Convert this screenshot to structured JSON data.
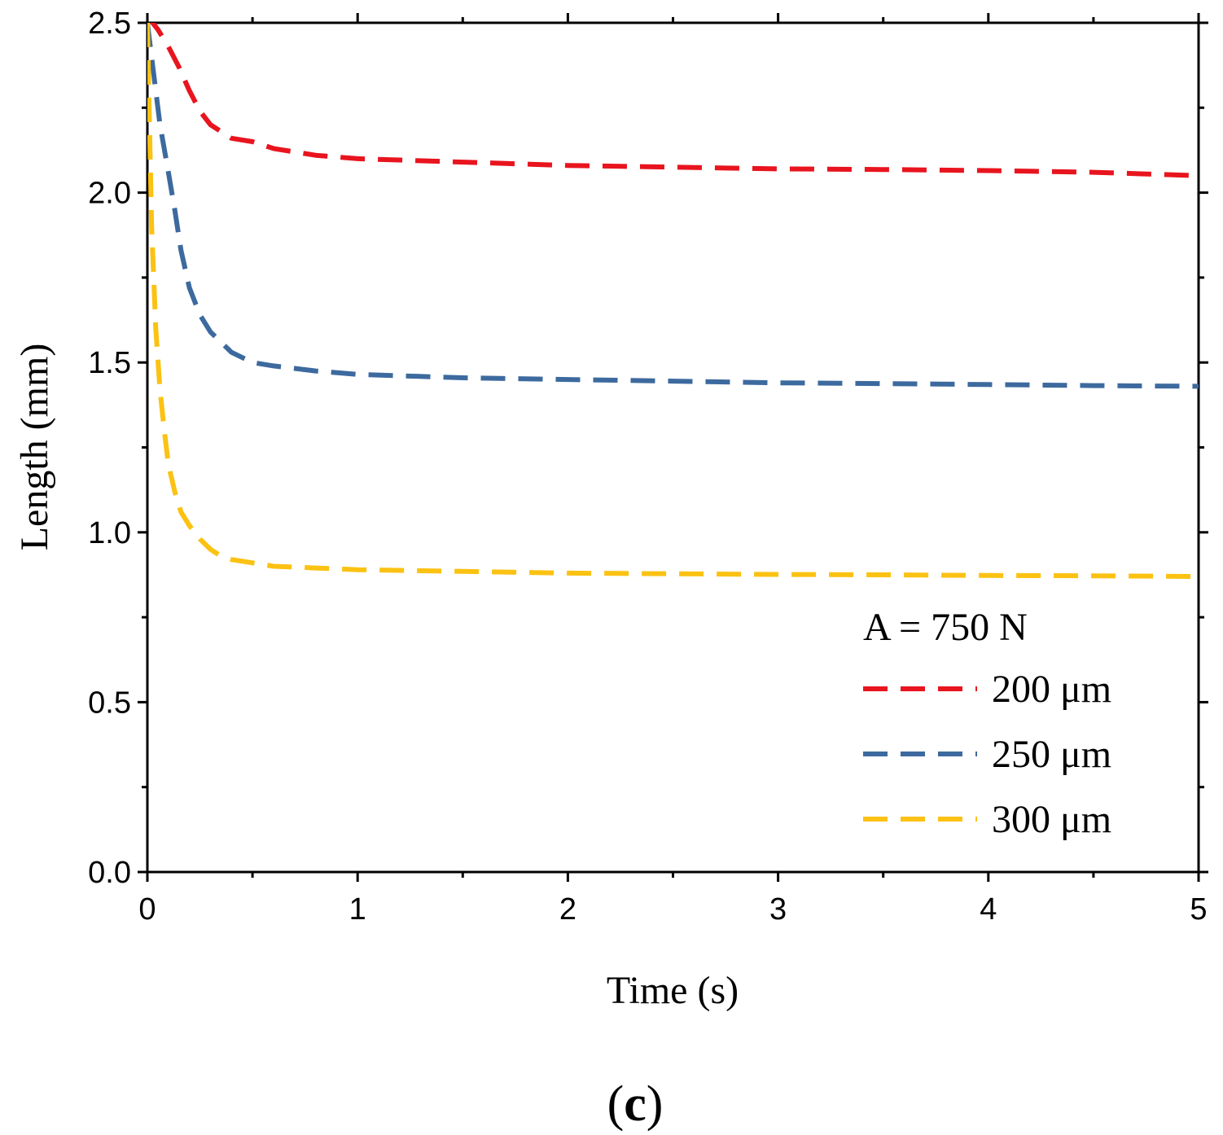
{
  "chart_data": {
    "type": "line",
    "title": "",
    "xlabel": "Time (s)",
    "ylabel": "Length (mm)",
    "xlim": [
      0,
      5
    ],
    "ylim": [
      0,
      2.5
    ],
    "x_ticks": [
      0,
      1,
      2,
      3,
      4,
      5
    ],
    "x_tick_labels": [
      "0",
      "1",
      "2",
      "3",
      "4",
      "5"
    ],
    "y_ticks": [
      0,
      0.5,
      1,
      1.5,
      2,
      2.5
    ],
    "y_tick_labels": [
      "0.0",
      "0.5",
      "1.0",
      "1.5",
      "2.0",
      "2.5"
    ],
    "grid": false,
    "legend": {
      "title": "A = 750 N",
      "position": "bottom-right"
    },
    "series": [
      {
        "name": "200 μm",
        "color": "#e8141e",
        "style": "dashed",
        "x": [
          0,
          0.05,
          0.1,
          0.15,
          0.2,
          0.25,
          0.3,
          0.35,
          0.4,
          0.5,
          0.6,
          0.8,
          1.0,
          1.5,
          2.0,
          2.5,
          3.0,
          3.5,
          4.0,
          4.5,
          5.0
        ],
        "y": [
          2.52,
          2.48,
          2.43,
          2.37,
          2.3,
          2.24,
          2.2,
          2.18,
          2.16,
          2.15,
          2.13,
          2.11,
          2.1,
          2.09,
          2.08,
          2.075,
          2.07,
          2.068,
          2.065,
          2.06,
          2.05
        ]
      },
      {
        "name": "250 μm",
        "color": "#3d6a9e",
        "style": "dashed",
        "x": [
          0,
          0.03,
          0.06,
          0.1,
          0.13,
          0.16,
          0.2,
          0.25,
          0.3,
          0.35,
          0.4,
          0.5,
          0.6,
          0.8,
          1.0,
          1.5,
          2.0,
          2.5,
          3.0,
          3.5,
          4.0,
          4.5,
          5.0
        ],
        "y": [
          2.5,
          2.35,
          2.2,
          2.06,
          1.95,
          1.83,
          1.72,
          1.64,
          1.59,
          1.56,
          1.53,
          1.5,
          1.49,
          1.475,
          1.465,
          1.455,
          1.45,
          1.445,
          1.44,
          1.438,
          1.435,
          1.432,
          1.43
        ]
      },
      {
        "name": "300 μm",
        "color": "#fbc213",
        "style": "dashed",
        "x": [
          0,
          0.01,
          0.02,
          0.04,
          0.06,
          0.08,
          0.1,
          0.13,
          0.16,
          0.2,
          0.25,
          0.3,
          0.35,
          0.4,
          0.5,
          0.6,
          0.8,
          1.0,
          1.5,
          2.0,
          2.5,
          3.0,
          3.5,
          4.0,
          4.5,
          5.0
        ],
        "y": [
          2.5,
          2.2,
          1.9,
          1.6,
          1.42,
          1.3,
          1.2,
          1.12,
          1.06,
          1.02,
          0.98,
          0.95,
          0.93,
          0.92,
          0.91,
          0.9,
          0.895,
          0.89,
          0.885,
          0.88,
          0.878,
          0.876,
          0.875,
          0.873,
          0.872,
          0.87
        ]
      }
    ],
    "panel_label": "c"
  }
}
